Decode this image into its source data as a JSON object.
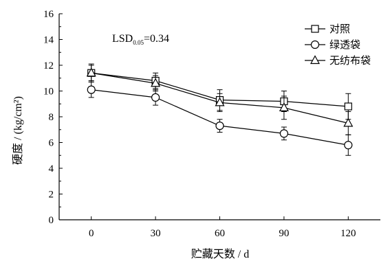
{
  "chart_data": {
    "type": "line",
    "xlabel": "贮藏天数 / d",
    "ylabel": "硬度 / (kg/cm²)",
    "x": [
      0,
      30,
      60,
      90,
      120
    ],
    "xlim": [
      0,
      120
    ],
    "ylim": [
      0,
      16
    ],
    "x_ticks": [
      "0",
      "30",
      "60",
      "90",
      "120"
    ],
    "y_ticks": [
      "0",
      "2",
      "4",
      "6",
      "8",
      "10",
      "12",
      "14",
      "16"
    ],
    "grid": false,
    "legend_position": "top-right",
    "annotation": {
      "main": "LSD",
      "sub": "0.05",
      "value": "=0.34"
    },
    "series": [
      {
        "name": "对照",
        "marker": "square",
        "values": [
          11.4,
          10.8,
          9.3,
          9.2,
          8.8
        ],
        "errors": [
          0.7,
          0.6,
          0.8,
          0.8,
          1.0
        ]
      },
      {
        "name": "绿透袋",
        "marker": "circle",
        "values": [
          10.1,
          9.5,
          7.3,
          6.7,
          5.8
        ],
        "errors": [
          0.6,
          0.6,
          0.5,
          0.5,
          0.8
        ]
      },
      {
        "name": "无纺布袋",
        "marker": "triangle",
        "values": [
          11.4,
          10.6,
          9.1,
          8.7,
          7.5
        ],
        "errors": [
          0.6,
          0.6,
          0.7,
          0.9,
          0.9
        ]
      }
    ]
  }
}
